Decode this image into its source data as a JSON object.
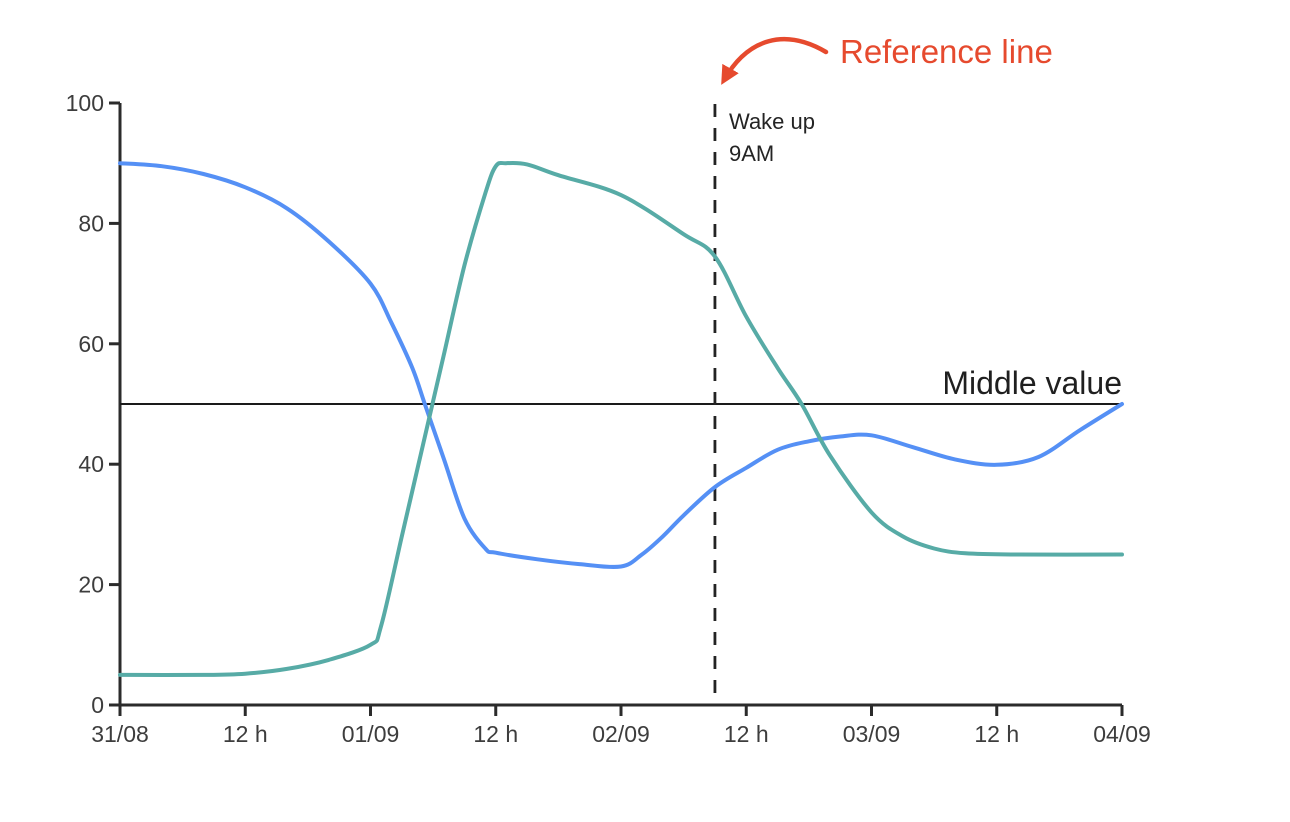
{
  "chart_data": {
    "type": "line",
    "title": "",
    "xlabel": "",
    "ylabel": "",
    "x_axis": {
      "unit": "hours since 31/08 00:00",
      "range_hours": [
        0,
        96
      ],
      "tick_hours": [
        0,
        12,
        24,
        36,
        48,
        60,
        72,
        84,
        96
      ],
      "tick_labels": [
        "31/08",
        "12 h",
        "01/09",
        "12 h",
        "02/09",
        "12 h",
        "03/09",
        "12 h",
        "04/09"
      ]
    },
    "y_axis": {
      "range": [
        0,
        100
      ],
      "ticks": [
        0,
        20,
        40,
        60,
        80,
        100
      ],
      "tick_labels": [
        "0",
        "20",
        "40",
        "60",
        "80",
        "100"
      ]
    },
    "grid": "off",
    "legend": "none",
    "series": [
      {
        "name": "blue-series",
        "color": "#5590f5",
        "points": [
          [
            0,
            90
          ],
          [
            4,
            89.5
          ],
          [
            8,
            88.2
          ],
          [
            12,
            86
          ],
          [
            16,
            82.5
          ],
          [
            20,
            77
          ],
          [
            24,
            70
          ],
          [
            26,
            63.5
          ],
          [
            28,
            56
          ],
          [
            29.2,
            50
          ],
          [
            31,
            41
          ],
          [
            33,
            31
          ],
          [
            35,
            26
          ],
          [
            36,
            25.3
          ],
          [
            40,
            24.2
          ],
          [
            44,
            23.4
          ],
          [
            48,
            23
          ],
          [
            50,
            25
          ],
          [
            52,
            28
          ],
          [
            54,
            31.5
          ],
          [
            57,
            36.2
          ],
          [
            60,
            39.4
          ],
          [
            63,
            42.4
          ],
          [
            66,
            43.8
          ],
          [
            69,
            44.6
          ],
          [
            72,
            44.8
          ],
          [
            76,
            42.8
          ],
          [
            80,
            40.8
          ],
          [
            84,
            39.9
          ],
          [
            88,
            41.2
          ],
          [
            92,
            45.7
          ],
          [
            96,
            50
          ]
        ]
      },
      {
        "name": "teal-series",
        "color": "#57aba6",
        "points": [
          [
            0,
            5
          ],
          [
            8,
            5
          ],
          [
            12,
            5.2
          ],
          [
            16,
            6
          ],
          [
            20,
            7.5
          ],
          [
            24,
            10
          ],
          [
            25,
            13
          ],
          [
            27,
            28
          ],
          [
            29,
            43
          ],
          [
            31,
            58
          ],
          [
            33,
            73
          ],
          [
            35,
            85
          ],
          [
            36,
            89.5
          ],
          [
            37,
            90
          ],
          [
            39,
            89.8
          ],
          [
            42,
            88
          ],
          [
            48,
            84.7
          ],
          [
            54,
            78.2
          ],
          [
            57,
            74.5
          ],
          [
            60,
            64.5
          ],
          [
            63,
            56
          ],
          [
            65.3,
            50
          ],
          [
            68,
            41.5
          ],
          [
            72,
            32
          ],
          [
            75,
            28
          ],
          [
            78,
            26
          ],
          [
            81,
            25.2
          ],
          [
            86,
            25
          ],
          [
            96,
            25
          ]
        ]
      }
    ],
    "reference_lines": {
      "horizontal": {
        "value": 50,
        "label": "Middle value",
        "color": "#1a1a1a",
        "style": "solid"
      },
      "vertical": {
        "hour": 57,
        "label_line1": "Wake up",
        "label_line2": "9AM",
        "color": "#232323",
        "style": "dashed"
      }
    },
    "annotation": {
      "label": "Reference line",
      "color": "#e64a2e",
      "target": "vertical-dashed-line"
    },
    "axis_color": "#2b2b2b"
  }
}
